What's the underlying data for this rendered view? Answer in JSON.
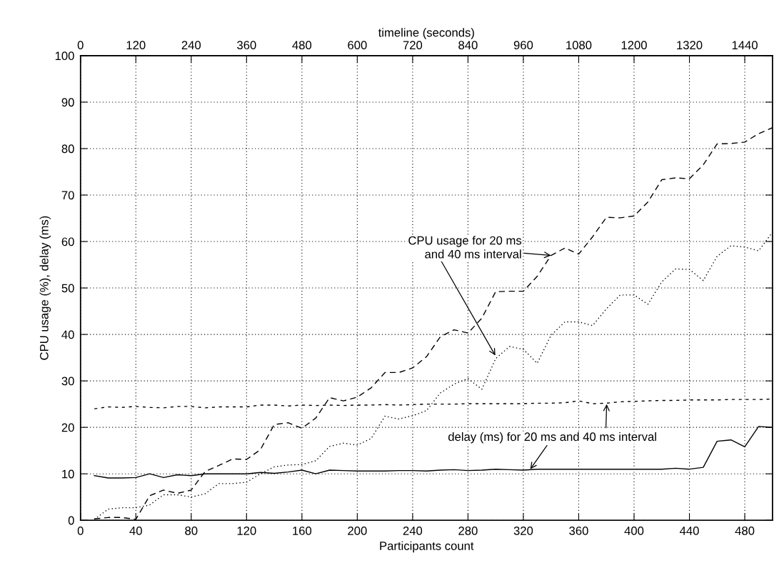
{
  "chart_data": {
    "type": "line",
    "xlabel": "Participants count",
    "ylabel": "CPU usage (%), delay (ms)",
    "x2label": "timeline (seconds)",
    "x": [
      10,
      20,
      30,
      40,
      50,
      60,
      70,
      80,
      90,
      100,
      110,
      120,
      130,
      140,
      150,
      160,
      170,
      180,
      190,
      200,
      210,
      220,
      230,
      240,
      250,
      260,
      270,
      280,
      290,
      300,
      310,
      320,
      330,
      340,
      350,
      360,
      370,
      380,
      390,
      400,
      410,
      420,
      430,
      440,
      450,
      460,
      470,
      480,
      490,
      500
    ],
    "series": [
      {
        "color": "#000000",
        "line_style": "dashed",
        "values": [
          0.3,
          0.6,
          0.6,
          0.2,
          5.3,
          6.5,
          5.8,
          6.5,
          10.5,
          11.8,
          13.2,
          13.1,
          15.2,
          20.6,
          21.0,
          19.8,
          22.0,
          26.4,
          25.7,
          26.5,
          28.5,
          31.8,
          31.8,
          32.8,
          35.2,
          39.5,
          41.0,
          40.3,
          43.5,
          49.2,
          49.3,
          49.3,
          52.5,
          57.0,
          58.6,
          57.3,
          61.0,
          65.2,
          65.1,
          65.5,
          68.5,
          73.3,
          73.7,
          73.5,
          76.5,
          81.0,
          81.1,
          81.4,
          83.2,
          84.5
        ]
      },
      {
        "color": "#000000",
        "line_style": "dotted",
        "values": [
          0.2,
          2.4,
          2.7,
          2.7,
          3.3,
          5.5,
          5.5,
          5.0,
          5.7,
          7.9,
          7.9,
          8.2,
          10.0,
          11.5,
          11.9,
          12.0,
          12.8,
          15.9,
          16.6,
          16.2,
          17.6,
          22.4,
          21.8,
          22.5,
          23.6,
          27.4,
          29.3,
          30.5,
          28.2,
          34.8,
          37.4,
          36.8,
          33.8,
          39.8,
          42.7,
          42.7,
          41.9,
          45.5,
          48.5,
          48.5,
          46.5,
          51.3,
          54.1,
          54.0,
          51.6,
          56.8,
          59.1,
          58.8,
          58.0,
          62.0
        ]
      },
      {
        "color": "#000000",
        "line_style": "dashed",
        "values": [
          24.0,
          24.4,
          24.3,
          24.5,
          24.3,
          24.2,
          24.5,
          24.5,
          24.2,
          24.4,
          24.4,
          24.4,
          24.8,
          24.8,
          24.6,
          24.8,
          24.7,
          24.8,
          24.7,
          24.8,
          24.8,
          24.9,
          24.8,
          24.9,
          25.0,
          25.0,
          25.0,
          25.1,
          25.1,
          25.1,
          25.1,
          25.1,
          25.2,
          25.2,
          25.3,
          25.7,
          25.1,
          25.2,
          25.5,
          25.6,
          25.7,
          25.8,
          25.8,
          25.9,
          25.9,
          25.9,
          26.0,
          26.0,
          26.0,
          26.1
        ]
      },
      {
        "color": "#000000",
        "line_style": "solid",
        "values": [
          9.6,
          9.1,
          9.1,
          9.2,
          10.0,
          9.2,
          9.8,
          9.6,
          10.0,
          10.0,
          10.0,
          10.0,
          10.3,
          10.1,
          10.4,
          10.8,
          10.0,
          10.8,
          10.7,
          10.6,
          10.6,
          10.6,
          10.7,
          10.7,
          10.6,
          10.8,
          10.9,
          10.7,
          10.8,
          11.0,
          10.9,
          10.8,
          11.0,
          11.0,
          11.0,
          11.0,
          11.0,
          11.0,
          11.0,
          11.0,
          11.0,
          11.0,
          11.2,
          11.0,
          11.4,
          17.0,
          17.3,
          15.8,
          20.2,
          20.0
        ]
      }
    ],
    "xlim": [
      0,
      500
    ],
    "xticks": [
      0,
      40,
      80,
      120,
      160,
      200,
      240,
      280,
      320,
      360,
      400,
      440,
      480
    ],
    "x2lim": [
      0,
      1500
    ],
    "x2ticks": [
      0,
      120,
      240,
      360,
      480,
      600,
      720,
      840,
      960,
      1080,
      1200,
      1320,
      1440
    ],
    "ylim": [
      0,
      100
    ],
    "yticks": [
      0,
      10,
      20,
      30,
      40,
      50,
      60,
      70,
      80,
      90,
      100
    ],
    "grid": true,
    "marker": "none",
    "annotations": [
      {
        "text": "CPU usage for 20 ms\nand 40 ms interval",
        "x": 340,
        "y": 57
      },
      {
        "text": "delay (ms) for 20 ms and 40 ms interval",
        "x": 325,
        "y": 11
      }
    ]
  }
}
